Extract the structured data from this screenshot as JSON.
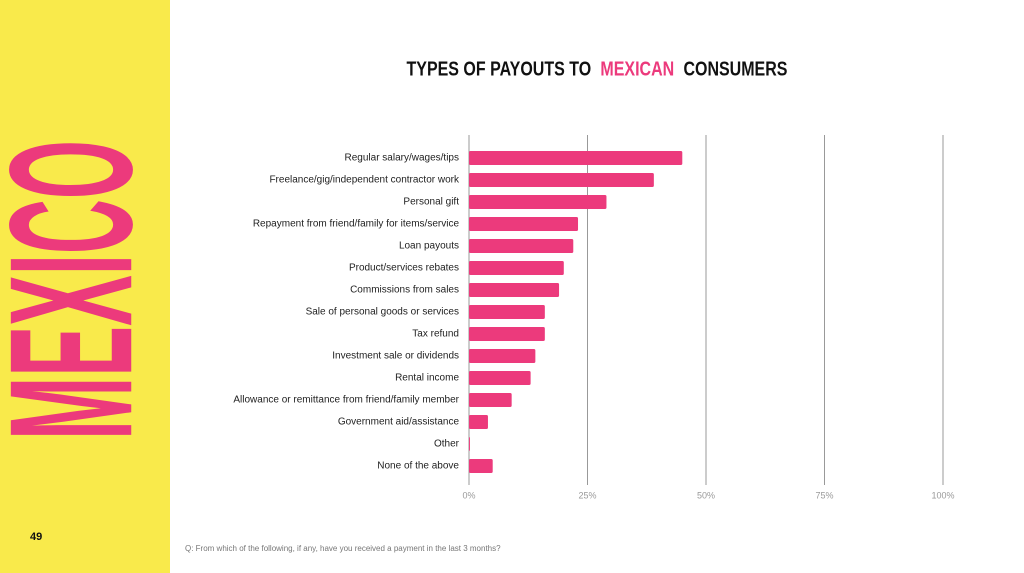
{
  "side_label": "MEXICO",
  "page_number": "49",
  "footnote": "Q: From which of the following, if any, have you received a payment in the last 3 months?",
  "chart_data": {
    "type": "bar",
    "orientation": "horizontal",
    "title": [
      "TYPES OF PAYOUTS TO",
      "MEXICAN",
      "CONSUMERS"
    ],
    "categories": [
      "Regular salary/wages/tips",
      "Freelance/gig/independent contractor work",
      "Personal gift",
      "Repayment from friend/family for items/service",
      "Loan payouts",
      "Product/services rebates",
      "Commissions from sales",
      "Sale of personal goods or services",
      "Tax refund",
      "Investment sale or dividends",
      "Rental income",
      "Allowance or remittance from friend/family member",
      "Government aid/assistance",
      "Other",
      "None of the above"
    ],
    "values": [
      45,
      39,
      29,
      23,
      22,
      20,
      19,
      16,
      16,
      14,
      13,
      9,
      4,
      0.2,
      5
    ],
    "color": "#ec3a7c",
    "xlim": [
      0,
      100
    ],
    "xticks": [
      {
        "value": 0,
        "label": "0%"
      },
      {
        "value": 25,
        "label": "25%"
      },
      {
        "value": 50,
        "label": "50%"
      },
      {
        "value": 75,
        "label": "75%"
      },
      {
        "value": 100,
        "label": "100%"
      }
    ],
    "grid": true
  }
}
